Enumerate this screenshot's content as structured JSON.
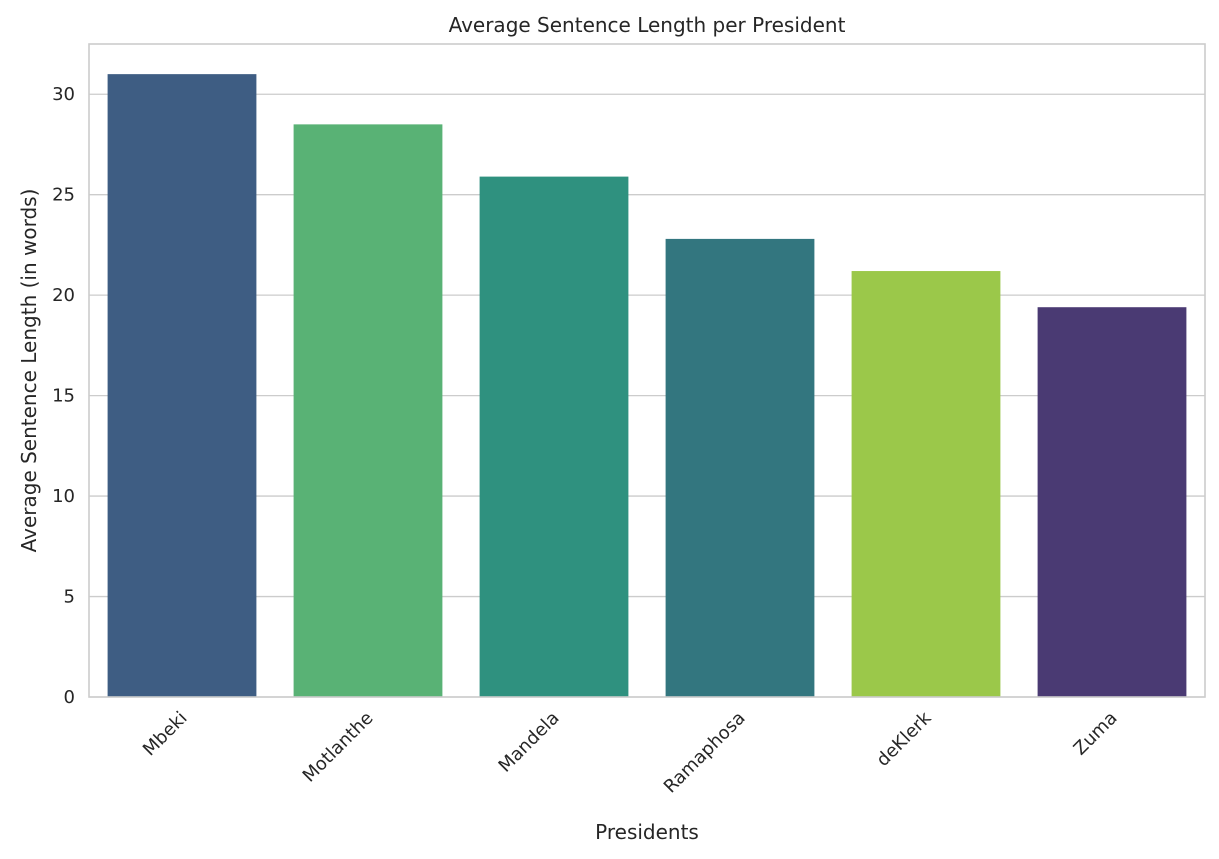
{
  "chart_data": {
    "type": "bar",
    "title": "Average Sentence Length per President",
    "xlabel": "Presidents",
    "ylabel": "Average Sentence Length (in words)",
    "categories": [
      "Mbeki",
      "Motlanthe",
      "Mandela",
      "Ramaphosa",
      "deKlerk",
      "Zuma"
    ],
    "values": [
      31.0,
      28.5,
      25.9,
      22.8,
      21.2,
      19.4
    ],
    "colors": [
      "#3e5d83",
      "#59b275",
      "#2f917f",
      "#33767f",
      "#9bc84a",
      "#4a3a73"
    ],
    "ylim": [
      0,
      32.5
    ],
    "yticks": [
      0,
      5,
      10,
      15,
      20,
      25,
      30
    ],
    "grid": true,
    "grid_axis": "y"
  }
}
